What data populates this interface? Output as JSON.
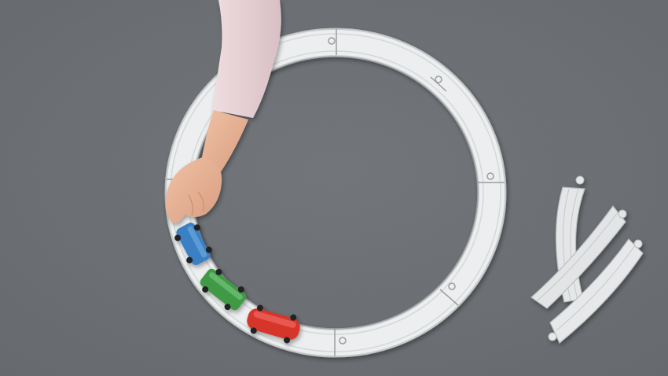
{
  "scene": {
    "description_label": "",
    "objects": [
      {
        "name": "circular-track",
        "kind": "wooden-style toy track",
        "color": "#e6e8e9"
      },
      {
        "name": "loose-track-pieces",
        "count": 3,
        "color": "#e2e4e5"
      },
      {
        "name": "toy-train",
        "cars": [
          {
            "name": "blue-car",
            "color": "#3a7fc4"
          },
          {
            "name": "green-car",
            "color": "#3f9a45"
          },
          {
            "name": "red-car",
            "color": "#d6342c"
          }
        ]
      },
      {
        "name": "child-arm",
        "sleeve_color": "#e8d2d6",
        "skin_color": "#e9b597"
      }
    ],
    "background_color": "#6f7377"
  }
}
